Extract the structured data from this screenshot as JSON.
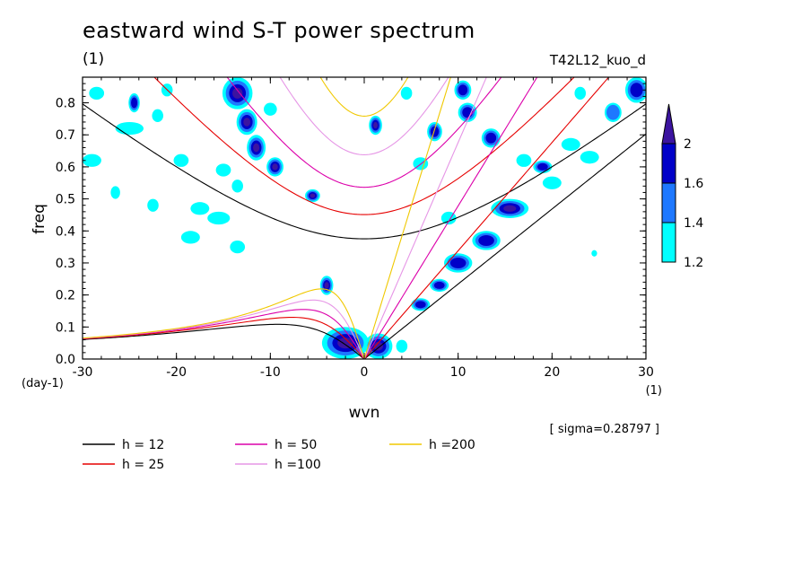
{
  "chart_data": {
    "type": "heatmap",
    "title": "eastward wind S-T power spectrum",
    "subtitle": "(1)",
    "run_name": "T42L12_kuo_d",
    "xlabel": "wvn",
    "x_units": "(1)",
    "ylabel": "freq",
    "y_units": "(day-1)",
    "xlim": [
      -30,
      30
    ],
    "ylim": [
      0,
      0.88
    ],
    "x_ticks": [
      -30,
      -20,
      -10,
      0,
      10,
      20,
      30
    ],
    "x_tick_labels": [
      "-30",
      "-20",
      "-10",
      "0",
      "10",
      "20",
      "30"
    ],
    "y_ticks": [
      0,
      0.1,
      0.2,
      0.3,
      0.4,
      0.5,
      0.6,
      0.7,
      0.8
    ],
    "y_tick_labels": [
      "0.0",
      "0.1",
      "0.2",
      "0.3",
      "0.4",
      "0.5",
      "0.6",
      "0.7",
      "0.8"
    ],
    "sigma_label": "[ sigma=0.28797 ]",
    "colorbar": {
      "levels": [
        1.2,
        1.4,
        1.6,
        2
      ],
      "labels": [
        "1.2",
        "1.4",
        "1.6",
        "2"
      ],
      "colors": [
        "#00ffff",
        "#1e78ff",
        "#0000c8",
        "#3c14a0"
      ]
    },
    "dispersion_curves": [
      {
        "name": "h = 12",
        "h": 12,
        "color": "#000000"
      },
      {
        "name": "h = 25",
        "h": 25,
        "color": "#e60000"
      },
      {
        "name": "h = 50",
        "h": 50,
        "color": "#dc00aa"
      },
      {
        "name": "h =100",
        "h": 100,
        "color": "#e696e6"
      },
      {
        "name": "h =200",
        "h": 200,
        "color": "#f0c800"
      }
    ],
    "anomaly_blobs": [
      {
        "k": -13.5,
        "f": 0.83,
        "rk": 1.6,
        "rf": 0.05,
        "level": 3
      },
      {
        "k": -12.5,
        "f": 0.74,
        "rk": 1.1,
        "rf": 0.04,
        "level": 3
      },
      {
        "k": -11.5,
        "f": 0.66,
        "rk": 1.0,
        "rf": 0.04,
        "level": 3
      },
      {
        "k": -9.5,
        "f": 0.6,
        "rk": 0.9,
        "rf": 0.03,
        "level": 3
      },
      {
        "k": -5.5,
        "f": 0.51,
        "rk": 0.8,
        "rf": 0.02,
        "level": 3
      },
      {
        "k": -24.5,
        "f": 0.8,
        "rk": 0.6,
        "rf": 0.03,
        "level": 2
      },
      {
        "k": 1.2,
        "f": 0.73,
        "rk": 0.7,
        "rf": 0.03,
        "level": 3
      },
      {
        "k": -4.0,
        "f": 0.23,
        "rk": 0.7,
        "rf": 0.03,
        "level": 3
      },
      {
        "k": -2.0,
        "f": 0.05,
        "rk": 2.5,
        "rf": 0.05,
        "level": 3
      },
      {
        "k": 1.5,
        "f": 0.04,
        "rk": 1.5,
        "rf": 0.04,
        "level": 3
      },
      {
        "k": 15.5,
        "f": 0.47,
        "rk": 2.0,
        "rf": 0.03,
        "level": 3
      },
      {
        "k": 13.0,
        "f": 0.37,
        "rk": 1.5,
        "rf": 0.03,
        "level": 2
      },
      {
        "k": 10.0,
        "f": 0.3,
        "rk": 1.5,
        "rf": 0.03,
        "level": 2
      },
      {
        "k": 8.0,
        "f": 0.23,
        "rk": 1.0,
        "rf": 0.02,
        "level": 2
      },
      {
        "k": 6.0,
        "f": 0.17,
        "rk": 1.0,
        "rf": 0.02,
        "level": 2
      },
      {
        "k": 19.0,
        "f": 0.6,
        "rk": 1.0,
        "rf": 0.02,
        "level": 2
      },
      {
        "k": 29.0,
        "f": 0.84,
        "rk": 1.2,
        "rf": 0.04,
        "level": 2
      },
      {
        "k": 26.5,
        "f": 0.77,
        "rk": 0.9,
        "rf": 0.03,
        "level": 1
      },
      {
        "k": 11.0,
        "f": 0.77,
        "rk": 1.0,
        "rf": 0.03,
        "level": 2
      },
      {
        "k": 13.5,
        "f": 0.69,
        "rk": 1.0,
        "rf": 0.03,
        "level": 2
      },
      {
        "k": 7.5,
        "f": 0.71,
        "rk": 0.8,
        "rf": 0.03,
        "level": 2
      },
      {
        "k": 10.5,
        "f": 0.84,
        "rk": 0.9,
        "rf": 0.03,
        "level": 2
      },
      {
        "k": -29.0,
        "f": 0.62,
        "rk": 1.0,
        "rf": 0.02,
        "level": 0
      },
      {
        "k": -25.0,
        "f": 0.72,
        "rk": 1.5,
        "rf": 0.02,
        "level": 0
      },
      {
        "k": -22.0,
        "f": 0.76,
        "rk": 0.6,
        "rf": 0.02,
        "level": 0
      },
      {
        "k": -19.5,
        "f": 0.62,
        "rk": 0.8,
        "rf": 0.02,
        "level": 0
      },
      {
        "k": -17.5,
        "f": 0.47,
        "rk": 1.0,
        "rf": 0.02,
        "level": 0
      },
      {
        "k": -15.5,
        "f": 0.44,
        "rk": 1.2,
        "rf": 0.02,
        "level": 0
      },
      {
        "k": -18.5,
        "f": 0.38,
        "rk": 1.0,
        "rf": 0.02,
        "level": 0
      },
      {
        "k": -13.5,
        "f": 0.35,
        "rk": 0.8,
        "rf": 0.02,
        "level": 0
      },
      {
        "k": -15.0,
        "f": 0.59,
        "rk": 0.8,
        "rf": 0.02,
        "level": 0
      },
      {
        "k": -13.5,
        "f": 0.54,
        "rk": 0.6,
        "rf": 0.02,
        "level": 0
      },
      {
        "k": -28.5,
        "f": 0.83,
        "rk": 0.8,
        "rf": 0.02,
        "level": 0
      },
      {
        "k": -21.0,
        "f": 0.84,
        "rk": 0.6,
        "rf": 0.02,
        "level": 0
      },
      {
        "k": -10.0,
        "f": 0.78,
        "rk": 0.7,
        "rf": 0.02,
        "level": 0
      },
      {
        "k": 4.0,
        "f": 0.04,
        "rk": 0.6,
        "rf": 0.02,
        "level": 0
      },
      {
        "k": 24.0,
        "f": 0.63,
        "rk": 1.0,
        "rf": 0.02,
        "level": 0
      },
      {
        "k": 20.0,
        "f": 0.55,
        "rk": 1.0,
        "rf": 0.02,
        "level": 0
      },
      {
        "k": 17.0,
        "f": 0.62,
        "rk": 0.8,
        "rf": 0.02,
        "level": 0
      },
      {
        "k": 22.0,
        "f": 0.67,
        "rk": 1.0,
        "rf": 0.02,
        "level": 0
      },
      {
        "k": 9.0,
        "f": 0.44,
        "rk": 0.8,
        "rf": 0.02,
        "level": 0
      },
      {
        "k": 6.0,
        "f": 0.61,
        "rk": 0.8,
        "rf": 0.02,
        "level": 0
      },
      {
        "k": 4.5,
        "f": 0.83,
        "rk": 0.6,
        "rf": 0.02,
        "level": 0
      },
      {
        "k": 23.0,
        "f": 0.83,
        "rk": 0.6,
        "rf": 0.02,
        "level": 0
      },
      {
        "k": 24.5,
        "f": 0.33,
        "rk": 0.3,
        "rf": 0.01,
        "level": 0
      },
      {
        "k": -22.5,
        "f": 0.48,
        "rk": 0.6,
        "rf": 0.02,
        "level": 0
      },
      {
        "k": -26.5,
        "f": 0.52,
        "rk": 0.5,
        "rf": 0.02,
        "level": 0
      }
    ]
  }
}
